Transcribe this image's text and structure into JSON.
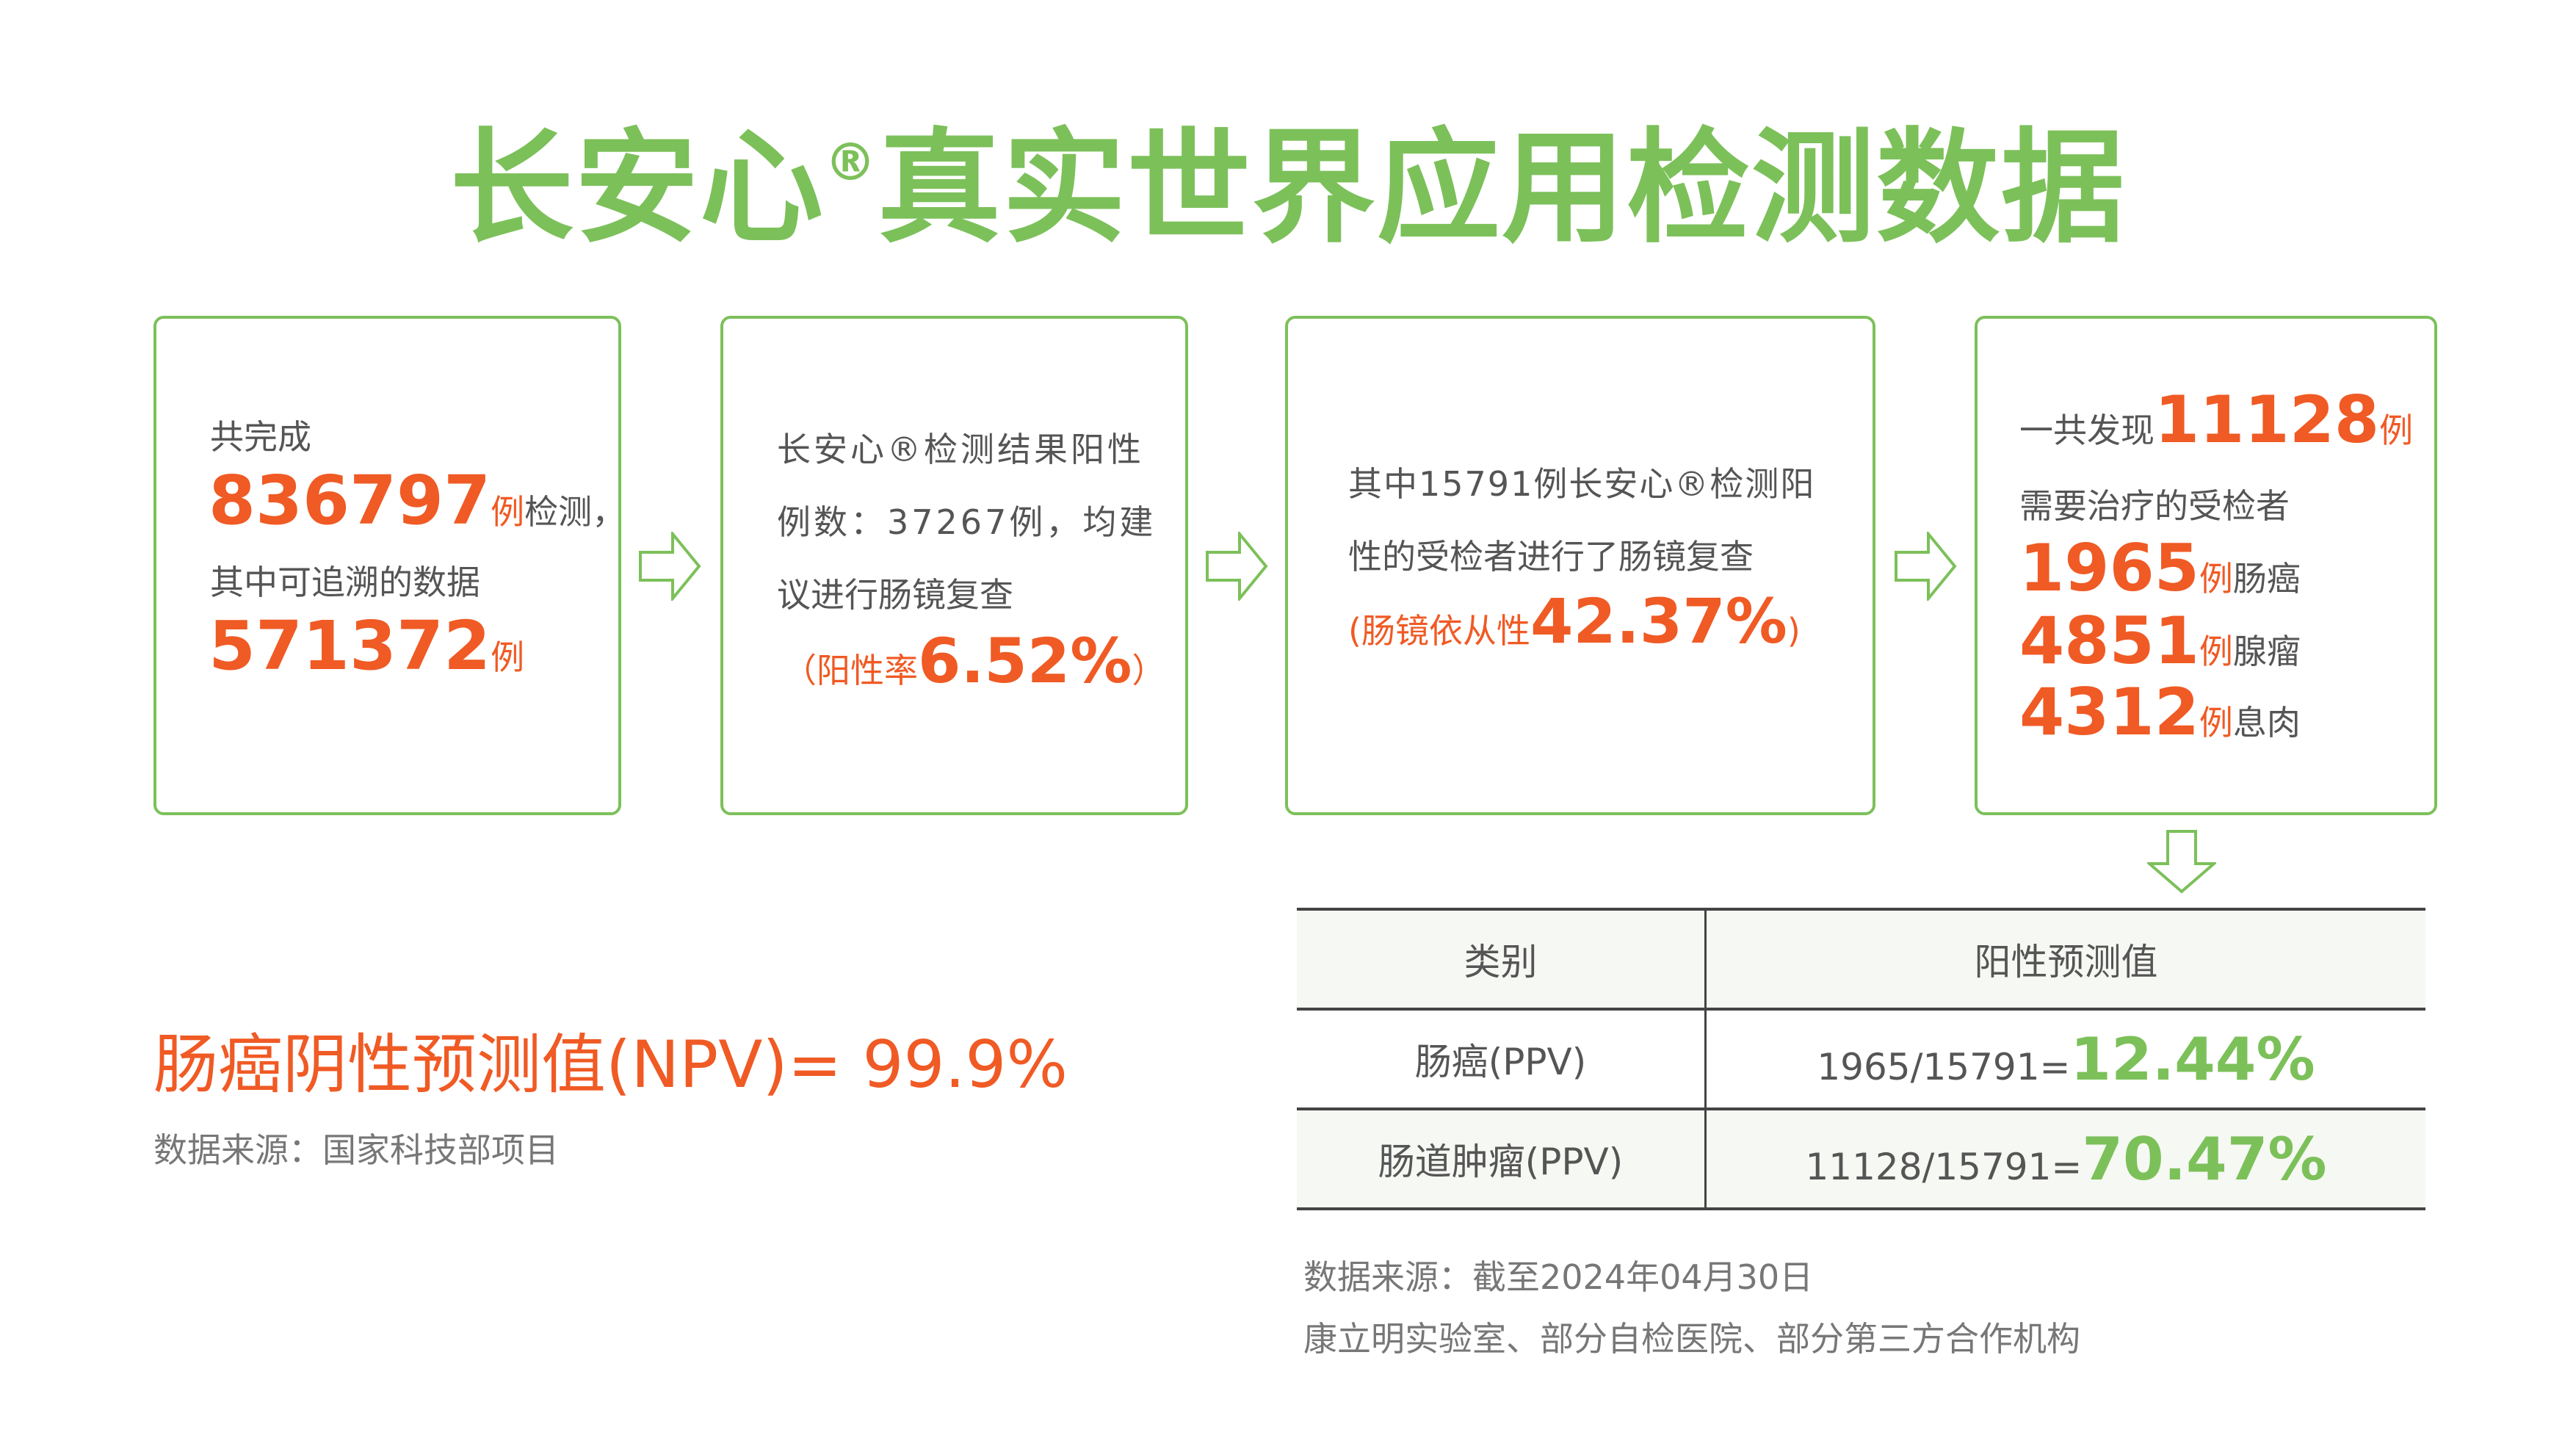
{
  "title": {
    "text": "长安心",
    "reg": "®",
    "rest": "真实世界应用检测数据"
  },
  "colors": {
    "green": "#7cc05a",
    "orange": "#f05a24",
    "text": "#555555"
  },
  "box1": {
    "line1": "共完成",
    "num1": "836797",
    "unit1": "例",
    "suffix1": "检测，",
    "line3": "其中可追溯的数据",
    "num2": "571372",
    "unit2": "例"
  },
  "box2": {
    "line1": "长安心®检测结果阳性",
    "line2": "例数：37267例，均建",
    "line3": "议进行肠镜复查",
    "rate_prefix": "（阳性率",
    "rate": "6.52%",
    "rate_suffix": "）"
  },
  "box3": {
    "line1": "其中15791例长安心®检测阳",
    "line2": "性的受检者进行了肠镜复查",
    "rate_prefix": "(肠镜依从性",
    "rate": "42.37%",
    "rate_suffix": ")"
  },
  "box4": {
    "prefix": "一共发现",
    "total": "11128",
    "unit": "例",
    "line2": "需要治疗的受检者",
    "items": [
      {
        "num": "1965",
        "unit": "例",
        "label": "肠癌"
      },
      {
        "num": "4851",
        "unit": "例",
        "label": "腺瘤"
      },
      {
        "num": "4312",
        "unit": "例",
        "label": "息肉"
      }
    ]
  },
  "icons": {
    "arrow": "arrow-right-outline-icon",
    "arrow_down": "arrow-down-outline-icon"
  },
  "npv": {
    "text": "肠癌阴性预测值(NPV)= 99.9%",
    "source": "数据来源：国家科技部项目"
  },
  "table": {
    "headers": [
      "类别",
      "阳性预测值"
    ],
    "rows": [
      {
        "category": "肠癌(PPV)",
        "formula": "1965/15791=",
        "value": "12.44%"
      },
      {
        "category": "肠道肿瘤(PPV)",
        "formula": "11128/15791=",
        "value": "70.47%"
      }
    ]
  },
  "source": {
    "line1": "数据来源：截至2024年04月30日",
    "line2": "康立明实验室、部分自检医院、部分第三方合作机构"
  }
}
